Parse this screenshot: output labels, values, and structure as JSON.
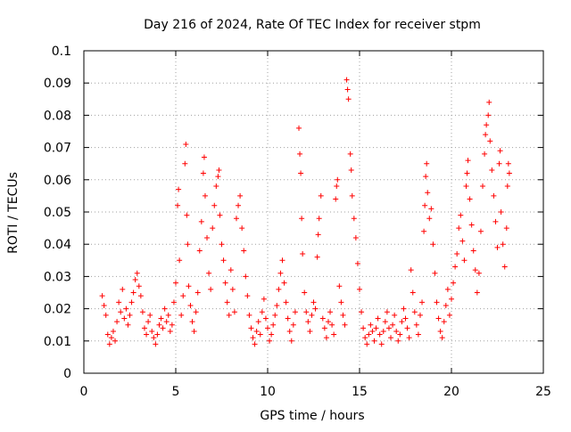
{
  "chart_data": {
    "type": "scatter",
    "title": "Day 216 of 2024, Rate Of TEC Index for receiver stpm",
    "xlabel": "GPS time / hours",
    "ylabel": "ROTI / TECUs",
    "xlim": [
      0,
      25
    ],
    "ylim": [
      0,
      0.1
    ],
    "x_ticks": [
      0,
      5,
      10,
      15,
      20,
      25
    ],
    "y_ticks": [
      0,
      0.01,
      0.02,
      0.03,
      0.04,
      0.05,
      0.06,
      0.07,
      0.08,
      0.09,
      0.1
    ],
    "grid": true,
    "marker": "plus",
    "colors": {
      "points": "#ff0000",
      "grid": "#a0a0a0",
      "axes": "#000000"
    },
    "series": [
      {
        "points": [
          [
            1.0,
            0.024
          ],
          [
            1.1,
            0.021
          ],
          [
            1.2,
            0.018
          ],
          [
            1.3,
            0.012
          ],
          [
            1.4,
            0.009
          ],
          [
            1.5,
            0.011
          ],
          [
            1.6,
            0.013
          ],
          [
            1.7,
            0.01
          ],
          [
            1.8,
            0.016
          ],
          [
            1.9,
            0.022
          ],
          [
            2.0,
            0.019
          ],
          [
            2.1,
            0.026
          ],
          [
            2.2,
            0.017
          ],
          [
            2.3,
            0.02
          ],
          [
            2.4,
            0.015
          ],
          [
            2.5,
            0.018
          ],
          [
            2.6,
            0.022
          ],
          [
            2.7,
            0.025
          ],
          [
            2.8,
            0.029
          ],
          [
            2.9,
            0.031
          ],
          [
            3.0,
            0.027
          ],
          [
            3.1,
            0.024
          ],
          [
            3.2,
            0.019
          ],
          [
            3.3,
            0.014
          ],
          [
            3.4,
            0.012
          ],
          [
            3.5,
            0.016
          ],
          [
            3.6,
            0.018
          ],
          [
            3.7,
            0.013
          ],
          [
            3.8,
            0.011
          ],
          [
            3.9,
            0.009
          ],
          [
            4.0,
            0.012
          ],
          [
            4.1,
            0.015
          ],
          [
            4.2,
            0.017
          ],
          [
            4.3,
            0.014
          ],
          [
            4.4,
            0.02
          ],
          [
            4.5,
            0.016
          ],
          [
            4.6,
            0.018
          ],
          [
            4.7,
            0.013
          ],
          [
            4.8,
            0.015
          ],
          [
            4.9,
            0.022
          ],
          [
            5.0,
            0.028
          ],
          [
            5.1,
            0.052
          ],
          [
            5.15,
            0.057
          ],
          [
            5.2,
            0.035
          ],
          [
            5.3,
            0.018
          ],
          [
            5.4,
            0.024
          ],
          [
            5.5,
            0.065
          ],
          [
            5.55,
            0.071
          ],
          [
            5.6,
            0.049
          ],
          [
            5.65,
            0.04
          ],
          [
            5.7,
            0.027
          ],
          [
            5.8,
            0.021
          ],
          [
            5.9,
            0.016
          ],
          [
            6.0,
            0.013
          ],
          [
            6.1,
            0.019
          ],
          [
            6.2,
            0.025
          ],
          [
            6.3,
            0.038
          ],
          [
            6.4,
            0.047
          ],
          [
            6.5,
            0.062
          ],
          [
            6.55,
            0.067
          ],
          [
            6.6,
            0.055
          ],
          [
            6.7,
            0.042
          ],
          [
            6.8,
            0.031
          ],
          [
            6.9,
            0.026
          ],
          [
            7.0,
            0.045
          ],
          [
            7.1,
            0.052
          ],
          [
            7.2,
            0.058
          ],
          [
            7.3,
            0.061
          ],
          [
            7.35,
            0.063
          ],
          [
            7.4,
            0.049
          ],
          [
            7.5,
            0.04
          ],
          [
            7.6,
            0.035
          ],
          [
            7.7,
            0.028
          ],
          [
            7.8,
            0.022
          ],
          [
            7.9,
            0.018
          ],
          [
            8.0,
            0.032
          ],
          [
            8.1,
            0.026
          ],
          [
            8.2,
            0.019
          ],
          [
            8.3,
            0.048
          ],
          [
            8.4,
            0.052
          ],
          [
            8.5,
            0.055
          ],
          [
            8.6,
            0.045
          ],
          [
            8.7,
            0.038
          ],
          [
            8.8,
            0.03
          ],
          [
            8.9,
            0.024
          ],
          [
            9.0,
            0.018
          ],
          [
            9.1,
            0.014
          ],
          [
            9.2,
            0.011
          ],
          [
            9.3,
            0.009
          ],
          [
            9.4,
            0.013
          ],
          [
            9.5,
            0.016
          ],
          [
            9.6,
            0.012
          ],
          [
            9.7,
            0.019
          ],
          [
            9.8,
            0.023
          ],
          [
            9.9,
            0.017
          ],
          [
            10.0,
            0.014
          ],
          [
            10.1,
            0.01
          ],
          [
            10.2,
            0.012
          ],
          [
            10.3,
            0.015
          ],
          [
            10.4,
            0.018
          ],
          [
            10.5,
            0.021
          ],
          [
            10.6,
            0.026
          ],
          [
            10.7,
            0.031
          ],
          [
            10.8,
            0.035
          ],
          [
            10.9,
            0.028
          ],
          [
            11.0,
            0.022
          ],
          [
            11.1,
            0.017
          ],
          [
            11.2,
            0.013
          ],
          [
            11.3,
            0.01
          ],
          [
            11.4,
            0.015
          ],
          [
            11.5,
            0.019
          ],
          [
            11.7,
            0.076
          ],
          [
            11.75,
            0.068
          ],
          [
            11.8,
            0.062
          ],
          [
            11.85,
            0.048
          ],
          [
            11.9,
            0.037
          ],
          [
            12.0,
            0.025
          ],
          [
            12.1,
            0.019
          ],
          [
            12.2,
            0.016
          ],
          [
            12.3,
            0.013
          ],
          [
            12.4,
            0.018
          ],
          [
            12.5,
            0.022
          ],
          [
            12.6,
            0.02
          ],
          [
            12.7,
            0.036
          ],
          [
            12.75,
            0.043
          ],
          [
            12.8,
            0.048
          ],
          [
            12.9,
            0.055
          ],
          [
            13.0,
            0.017
          ],
          [
            13.1,
            0.014
          ],
          [
            13.2,
            0.011
          ],
          [
            13.3,
            0.016
          ],
          [
            13.4,
            0.019
          ],
          [
            13.5,
            0.015
          ],
          [
            13.6,
            0.012
          ],
          [
            13.7,
            0.054
          ],
          [
            13.75,
            0.058
          ],
          [
            13.8,
            0.06
          ],
          [
            13.9,
            0.027
          ],
          [
            14.0,
            0.022
          ],
          [
            14.1,
            0.018
          ],
          [
            14.2,
            0.015
          ],
          [
            14.3,
            0.091
          ],
          [
            14.35,
            0.088
          ],
          [
            14.4,
            0.085
          ],
          [
            14.5,
            0.068
          ],
          [
            14.55,
            0.063
          ],
          [
            14.6,
            0.055
          ],
          [
            14.7,
            0.048
          ],
          [
            14.8,
            0.042
          ],
          [
            14.9,
            0.034
          ],
          [
            15.0,
            0.026
          ],
          [
            15.1,
            0.019
          ],
          [
            15.2,
            0.014
          ],
          [
            15.3,
            0.011
          ],
          [
            15.4,
            0.009
          ],
          [
            15.5,
            0.012
          ],
          [
            15.6,
            0.015
          ],
          [
            15.7,
            0.013
          ],
          [
            15.8,
            0.01
          ],
          [
            15.9,
            0.014
          ],
          [
            16.0,
            0.017
          ],
          [
            16.1,
            0.012
          ],
          [
            16.2,
            0.009
          ],
          [
            16.3,
            0.013
          ],
          [
            16.4,
            0.016
          ],
          [
            16.5,
            0.019
          ],
          [
            16.6,
            0.014
          ],
          [
            16.7,
            0.011
          ],
          [
            16.8,
            0.015
          ],
          [
            16.9,
            0.018
          ],
          [
            17.0,
            0.013
          ],
          [
            17.1,
            0.01
          ],
          [
            17.2,
            0.012
          ],
          [
            17.3,
            0.016
          ],
          [
            17.4,
            0.02
          ],
          [
            17.5,
            0.017
          ],
          [
            17.6,
            0.014
          ],
          [
            17.7,
            0.011
          ],
          [
            17.8,
            0.032
          ],
          [
            17.9,
            0.025
          ],
          [
            18.0,
            0.019
          ],
          [
            18.1,
            0.015
          ],
          [
            18.2,
            0.012
          ],
          [
            18.3,
            0.018
          ],
          [
            18.4,
            0.022
          ],
          [
            18.5,
            0.044
          ],
          [
            18.55,
            0.052
          ],
          [
            18.6,
            0.061
          ],
          [
            18.65,
            0.065
          ],
          [
            18.7,
            0.056
          ],
          [
            18.8,
            0.048
          ],
          [
            18.9,
            0.051
          ],
          [
            19.0,
            0.04
          ],
          [
            19.1,
            0.031
          ],
          [
            19.2,
            0.022
          ],
          [
            19.3,
            0.017
          ],
          [
            19.4,
            0.013
          ],
          [
            19.5,
            0.011
          ],
          [
            19.6,
            0.016
          ],
          [
            19.7,
            0.021
          ],
          [
            19.8,
            0.026
          ],
          [
            19.9,
            0.018
          ],
          [
            20.0,
            0.023
          ],
          [
            20.1,
            0.028
          ],
          [
            20.2,
            0.033
          ],
          [
            20.3,
            0.037
          ],
          [
            20.4,
            0.045
          ],
          [
            20.5,
            0.049
          ],
          [
            20.6,
            0.041
          ],
          [
            20.7,
            0.035
          ],
          [
            20.8,
            0.058
          ],
          [
            20.85,
            0.062
          ],
          [
            20.9,
            0.066
          ],
          [
            21.0,
            0.054
          ],
          [
            21.1,
            0.046
          ],
          [
            21.2,
            0.038
          ],
          [
            21.3,
            0.032
          ],
          [
            21.4,
            0.025
          ],
          [
            21.5,
            0.031
          ],
          [
            21.6,
            0.044
          ],
          [
            21.7,
            0.058
          ],
          [
            21.8,
            0.068
          ],
          [
            21.85,
            0.074
          ],
          [
            21.9,
            0.077
          ],
          [
            22.0,
            0.08
          ],
          [
            22.05,
            0.084
          ],
          [
            22.1,
            0.072
          ],
          [
            22.2,
            0.063
          ],
          [
            22.3,
            0.055
          ],
          [
            22.4,
            0.047
          ],
          [
            22.5,
            0.039
          ],
          [
            22.6,
            0.065
          ],
          [
            22.65,
            0.069
          ],
          [
            22.7,
            0.05
          ],
          [
            22.8,
            0.04
          ],
          [
            22.9,
            0.033
          ],
          [
            23.0,
            0.045
          ],
          [
            23.05,
            0.058
          ],
          [
            23.1,
            0.065
          ],
          [
            23.15,
            0.062
          ]
        ]
      }
    ]
  }
}
